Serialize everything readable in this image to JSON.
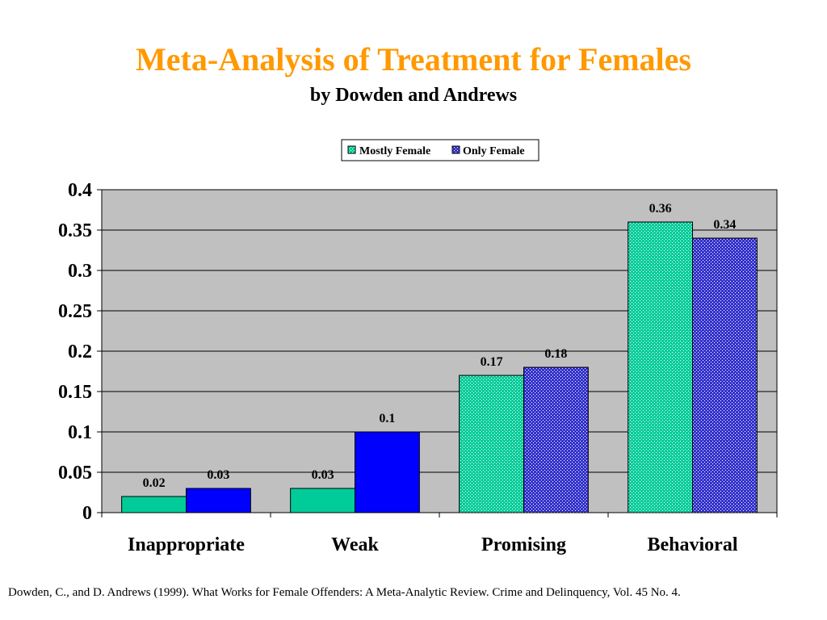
{
  "title": "Meta-Analysis of Treatment for Females",
  "subtitle": "by Dowden and Andrews",
  "citation": "Dowden, C., and D. Andrews (1999).  What Works for Female Offenders: A Meta-Analytic Review.  Crime and Delinquency, Vol. 45 No. 4.",
  "colors": {
    "title": "#ff9900",
    "plot_background": "#c0c0c0",
    "mostly_female": "#00cc99",
    "only_female": "#0000ff"
  },
  "chart_data": {
    "type": "bar",
    "categories": [
      "Inappropriate",
      "Weak",
      "Promising",
      "Behavioral"
    ],
    "series": [
      {
        "name": "Mostly Female",
        "values": [
          0.02,
          0.03,
          0.17,
          0.36
        ],
        "labels": [
          "0.02",
          "0.03",
          "0.17",
          "0.36"
        ],
        "color": "#00cc99",
        "patterned": [
          false,
          false,
          true,
          true
        ]
      },
      {
        "name": "Only Female",
        "values": [
          0.03,
          0.1,
          0.18,
          0.34
        ],
        "labels": [
          "0.03",
          "0.1",
          "0.18",
          "0.34"
        ],
        "color": "#0000ff",
        "patterned": [
          false,
          false,
          true,
          true
        ]
      }
    ],
    "yticks": [
      "0",
      "0.05",
      "0.1",
      "0.15",
      "0.2",
      "0.25",
      "0.3",
      "0.35",
      "0.4"
    ],
    "ylim": [
      0,
      0.4
    ],
    "grid": true,
    "legend_position": "top-center"
  }
}
